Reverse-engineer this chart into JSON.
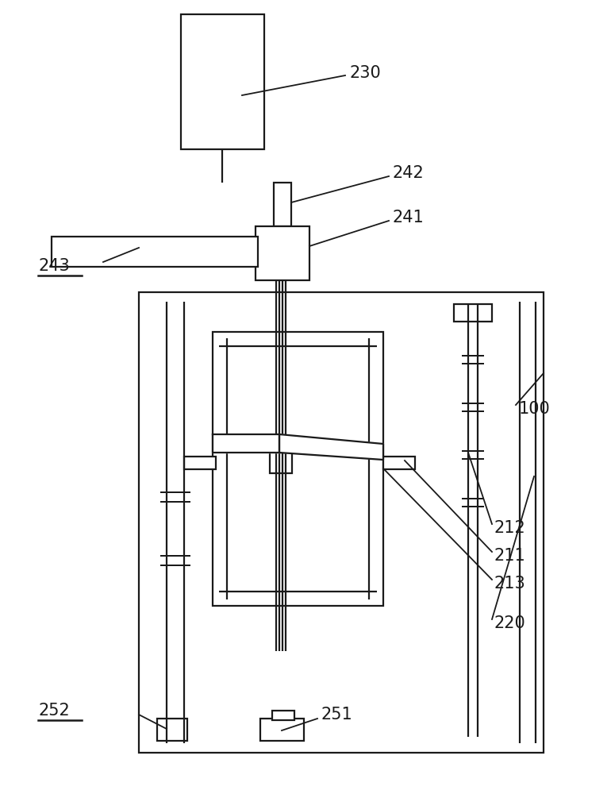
{
  "bg_color": "#ffffff",
  "line_color": "#1a1a1a",
  "lw": 1.6,
  "fig_width": 7.7,
  "fig_height": 10.0
}
